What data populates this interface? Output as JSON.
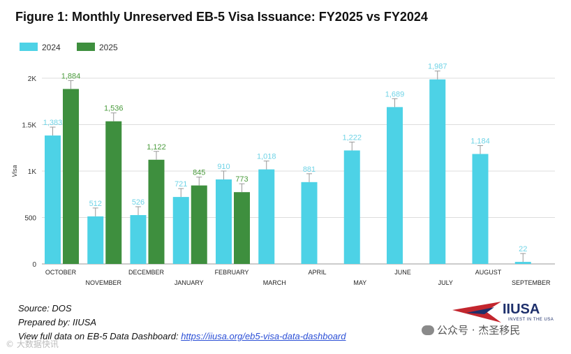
{
  "title": "Figure 1: Monthly Unreserved EB-5 Visa Issuance: FY2025 vs FY2024",
  "chart_data": {
    "type": "bar",
    "categories": [
      "OCTOBER",
      "NOVEMBER",
      "DECEMBER",
      "JANUARY",
      "FEBRUARY",
      "MARCH",
      "APRIL",
      "MAY",
      "JUNE",
      "JULY",
      "AUGUST",
      "SEPTEMBER"
    ],
    "series": [
      {
        "name": "2024",
        "color": "#4dd2e6",
        "label_color": "#6fd3e6",
        "values": [
          1383,
          512,
          526,
          721,
          910,
          1018,
          881,
          1222,
          1689,
          1987,
          1184,
          22
        ]
      },
      {
        "name": "2025",
        "color": "#3e8f3e",
        "label_color": "#4a9b3c",
        "values": [
          1884,
          1536,
          1122,
          845,
          773,
          null,
          null,
          null,
          null,
          null,
          null,
          null
        ]
      }
    ],
    "data_labels": {
      "2024": [
        "1,383",
        "512",
        "526",
        "721",
        "910",
        "1,018",
        "881",
        "1,222",
        "1,689",
        "1,987",
        "1,184",
        "22"
      ],
      "2025": [
        "1,884",
        "1,536",
        "1,122",
        "845",
        "773",
        "",
        "",
        "",
        "",
        "",
        "",
        ""
      ]
    },
    "yticks": [
      0,
      500,
      1000,
      1500,
      2000
    ],
    "ytick_labels": [
      "0",
      "500",
      "1K",
      "1.5K",
      "2K"
    ],
    "ylim": [
      0,
      2000
    ],
    "ylabel": "Visa",
    "xlabel": "",
    "grid": true,
    "legend": "top-left"
  },
  "footer": {
    "source": "Source: DOS",
    "prepared": "Prepared by: IIUSA",
    "view_prefix": "View full data on EB-5 Data Dashboard: ",
    "link_text": "https://iiusa.org/eb5-visa-data-dashboard"
  },
  "logo": {
    "name": "IIUSA",
    "tagline": "INVEST IN THE USA"
  },
  "wechat_label": "公众号 · 杰圣移民",
  "watermark": "© 大数据快讯"
}
